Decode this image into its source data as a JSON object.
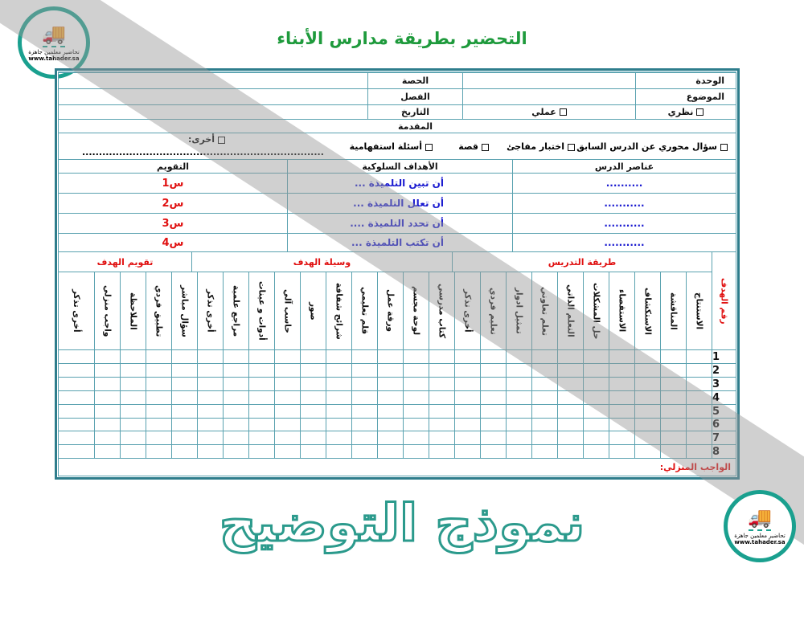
{
  "title": "التحضير بطريقة مدارس الأبناء",
  "logo": {
    "text": "تحاضير معلمين جاهزة",
    "url": "www.tahader.sa",
    "icon": "truck-graduation-cap-icon"
  },
  "watermark": "نموذج التوضيح",
  "header": {
    "unit": "الوحدة",
    "lesson": "الحصة",
    "topic": "الموضوع",
    "class": "الفصل",
    "theoretical": "نظري",
    "practical": "عملي",
    "date": "التاريخ",
    "intro": "المقدمة"
  },
  "intro_options": [
    "سؤال محوري عن الدرس السابق",
    "اختبار مفاجئ",
    "قصة",
    "أسئلة استفهامية",
    "أخرى:"
  ],
  "other_dots": "..................................................................................",
  "objectives": {
    "h_elements": "عناصر الدرس",
    "h_objectives": "الأهداف السلوكية",
    "h_eval": "التقويم",
    "rows": [
      {
        "element": "..........",
        "objective": "أن تبين التلميذة ...",
        "eval": "س1"
      },
      {
        "element": "...........",
        "objective": "أن تعلل التلميذة ...",
        "eval": "س2"
      },
      {
        "element": "...........",
        "objective": "أن تحدد التلميذة ....",
        "eval": "س3"
      },
      {
        "element": "...........",
        "objective": "أن تكتب التلميذة ...",
        "eval": "س4"
      }
    ]
  },
  "grid": {
    "goal_no": "رقم الهدف",
    "methods_title": "طريقة التدريس",
    "methods": [
      "الاستنتاج",
      "المناقشة",
      "الاستكشاف",
      "الاستقصاء",
      "حل المشكلات",
      "التعلم الذاتي",
      "تعلم تعاوني",
      "تمثيل ادوار",
      "تعليم فردي",
      "أخرى تذكر"
    ],
    "media_title": "وسيلة الهدف",
    "media": [
      "كتاب مدرسي",
      "لوحة مجسم",
      "ورقة عمل",
      "قلم تعليمي",
      "شرائح شفافة",
      "صور",
      "حاسب آلي",
      "أدوات و عينات",
      "مراجع علمية",
      "أخرى تذكر"
    ],
    "eval_title": "تقويم الهدف",
    "evals": [
      "سؤال مباشر",
      "تطبيق فردي",
      "الملاحظة",
      "واجب منزلي",
      "أخرى تذكر"
    ],
    "rows": [
      "1",
      "2",
      "3",
      "4",
      "5",
      "6",
      "7",
      "8"
    ]
  },
  "homework": "الواجب المنزلي:",
  "colors": {
    "title": "#1e9a3c",
    "border": "#2e7d8c",
    "red": "#e01010",
    "blue": "#1a1ad0"
  }
}
